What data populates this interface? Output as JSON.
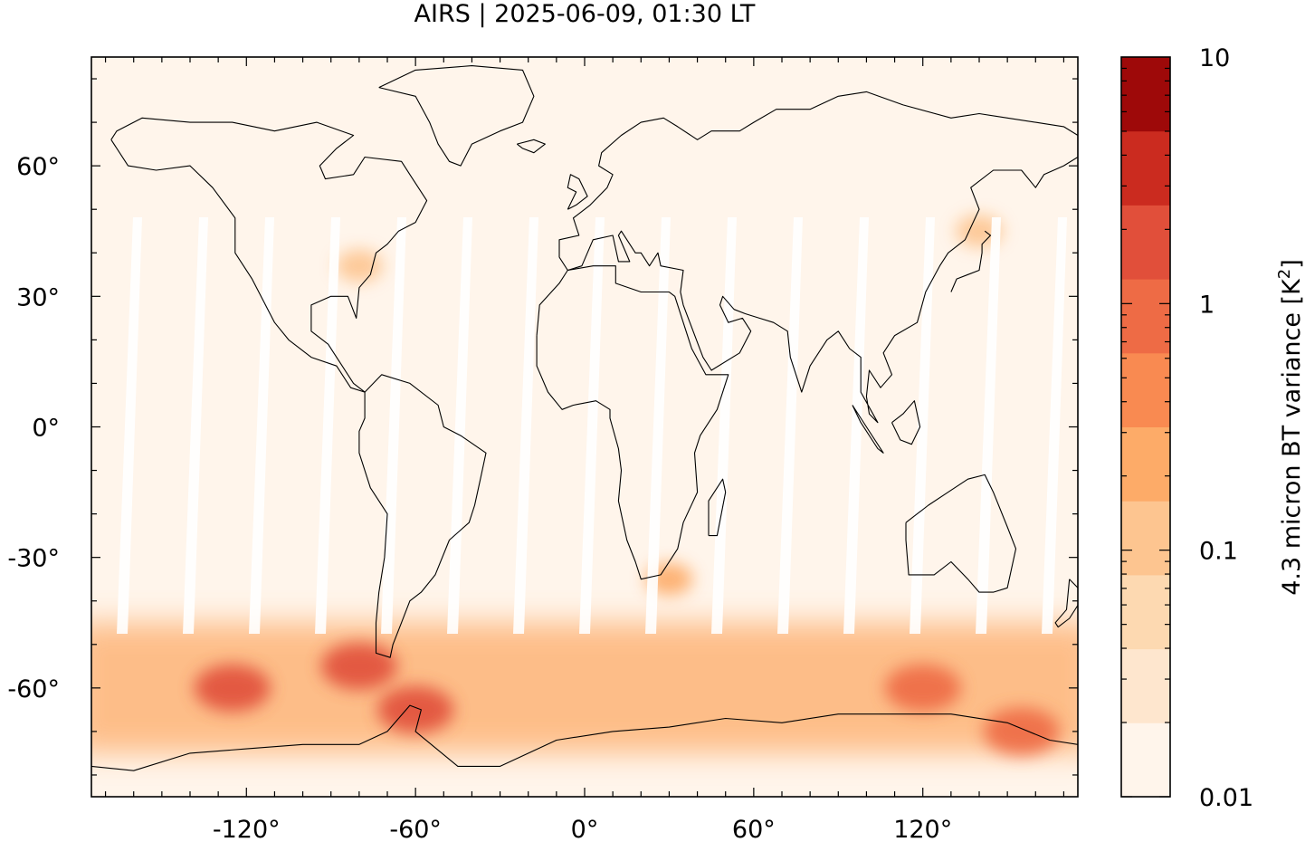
{
  "title": "AIRS | 2025-06-09, 01:30 LT",
  "map": {
    "projection": "equirectangular",
    "lon_range": [
      -175,
      175
    ],
    "lat_range": [
      -85,
      85
    ],
    "x_ticks": [
      {
        "value": -120,
        "label": "-120°"
      },
      {
        "value": -60,
        "label": "-60°"
      },
      {
        "value": 0,
        "label": "0°"
      },
      {
        "value": 60,
        "label": "60°"
      },
      {
        "value": 120,
        "label": "120°"
      }
    ],
    "y_ticks": [
      {
        "value": 60,
        "label": "60°"
      },
      {
        "value": 30,
        "label": "30°"
      },
      {
        "value": 0,
        "label": "0°"
      },
      {
        "value": -30,
        "label": "-30°"
      },
      {
        "value": -60,
        "label": "-60°"
      }
    ],
    "background_color": "#fff5eb",
    "land_outline_color": "#000000"
  },
  "colorbar": {
    "label_main": "4.3 micron BT variance [K",
    "label_sup": "2",
    "label_end": "]",
    "scale": "log",
    "range": [
      0.01,
      10
    ],
    "tick_labels": [
      {
        "value": 10,
        "label": "10"
      },
      {
        "value": 1,
        "label": "1"
      },
      {
        "value": 0.1,
        "label": "0.1"
      },
      {
        "value": 0.01,
        "label": "0.01"
      }
    ],
    "colors": [
      "#fff5eb",
      "#fee6ce",
      "#fdd9b1",
      "#fdc590",
      "#fdab68",
      "#f98a51",
      "#ee6b45",
      "#e14f3a",
      "#cb2b1f",
      "#9e0909"
    ]
  },
  "features": {
    "variance_regions": [
      {
        "name": "southern-ocean-band",
        "lat_range": [
          -75,
          -45
        ],
        "level": 0.2
      },
      {
        "name": "drake-passage-hotspot",
        "lon": -60,
        "lat": -65,
        "level": 2.5
      },
      {
        "name": "chile-coast-hotspot",
        "lon": -80,
        "lat": -55,
        "level": 2.0
      },
      {
        "name": "pacific-sector-hotspot",
        "lon": -125,
        "lat": -60,
        "level": 1.5
      },
      {
        "name": "south-indian-ocean-hotspot",
        "lon": 120,
        "lat": -60,
        "level": 1.2
      },
      {
        "name": "tasman-sector-hotspot",
        "lon": 155,
        "lat": -70,
        "level": 1.2
      },
      {
        "name": "south-africa-patch",
        "lon": 30,
        "lat": -35,
        "level": 0.3
      },
      {
        "name": "north-america-patch",
        "lon": -80,
        "lat": 37,
        "level": 0.08
      },
      {
        "name": "japan-patch",
        "lon": 140,
        "lat": 45,
        "level": 0.1
      }
    ]
  }
}
